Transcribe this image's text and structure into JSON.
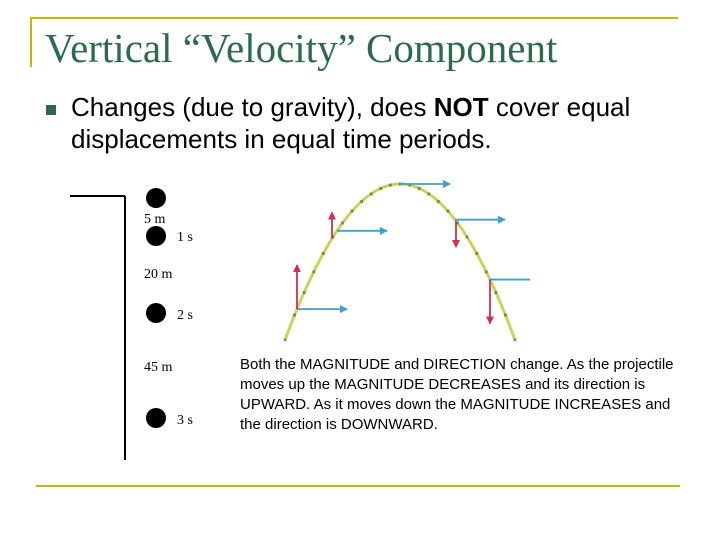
{
  "slide": {
    "title": "Vertical “Velocity” Component",
    "bullet": {
      "text_before": "Changes (due to gravity), does ",
      "emphasis": "NOT",
      "text_after": " cover equal displacements in equal time periods."
    },
    "caption": "Both the MAGNITUDE and DIRECTION change. As the projectile moves up the MAGNITUDE DECREASES and its direction is UPWARD. As it moves down the MAGNITUDE INCREASES and the direction is DOWNWARD."
  },
  "drop_figure": {
    "labels": {
      "d1": "5 m",
      "t1": "1 s",
      "d2": "20 m",
      "t2": "2 s",
      "d3": "45 m",
      "t3": "3 s"
    }
  },
  "colors": {
    "frame": "#c8b500",
    "title": "#2d6b4a",
    "trajectory": "#c8d45a",
    "horizontal_arrow": "#3f9fd0",
    "vertical_arrow": "#d0304a",
    "ball": "#000000"
  }
}
